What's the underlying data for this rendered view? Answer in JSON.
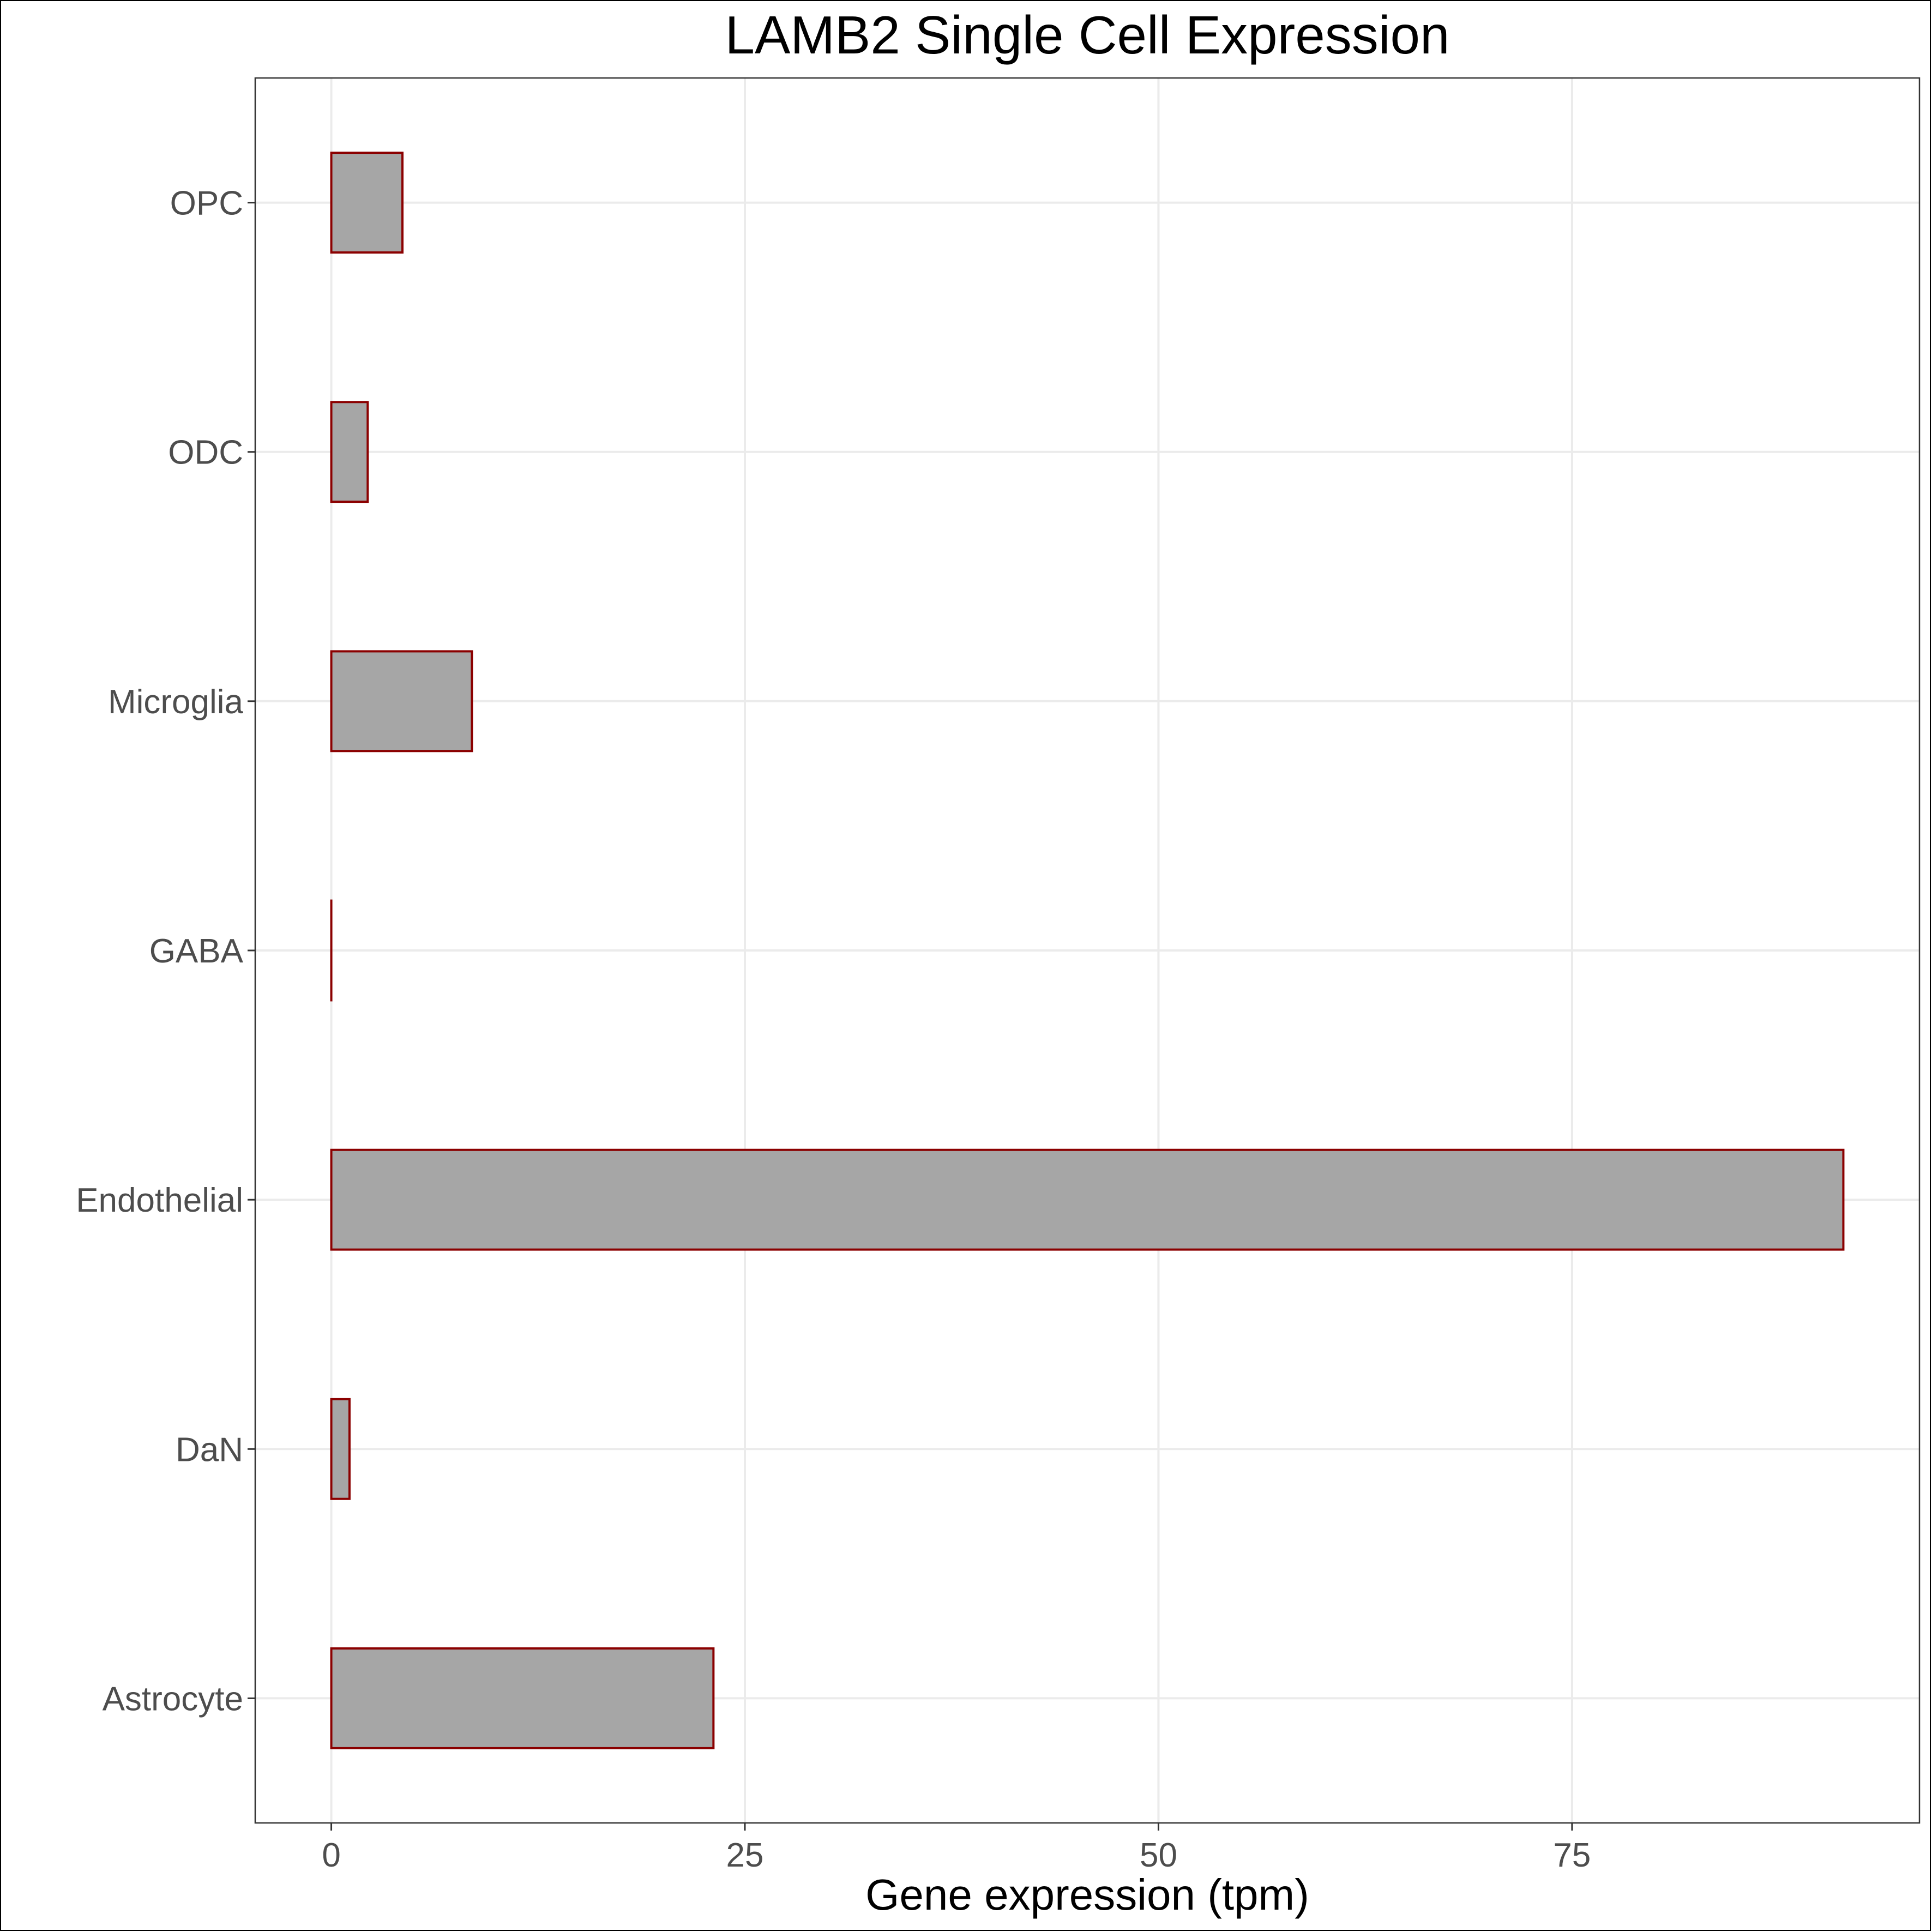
{
  "chart_data": {
    "type": "bar",
    "orientation": "horizontal",
    "title": "LAMB2 Single Cell Expression",
    "xlabel": "Gene expression (tpm)",
    "ylabel": "",
    "categories": [
      "Astrocyte",
      "DaN",
      "Endothelial",
      "GABA",
      "Microglia",
      "ODC",
      "OPC"
    ],
    "values": [
      23.1,
      1.1,
      91.4,
      0.0,
      8.5,
      2.2,
      4.3
    ],
    "xlim": [
      -4.6,
      96.0
    ],
    "xticks": [
      0,
      25,
      50,
      75
    ],
    "xtick_labels": [
      "0",
      "25",
      "50",
      "75"
    ],
    "grid": true,
    "legend": "none",
    "colors": {
      "bar_fill": "#a6a6a6",
      "bar_outline": "#8b0000",
      "grid": "#ebebeb",
      "panel_border": "#333333",
      "tick_text": "#4d4d4d"
    }
  }
}
